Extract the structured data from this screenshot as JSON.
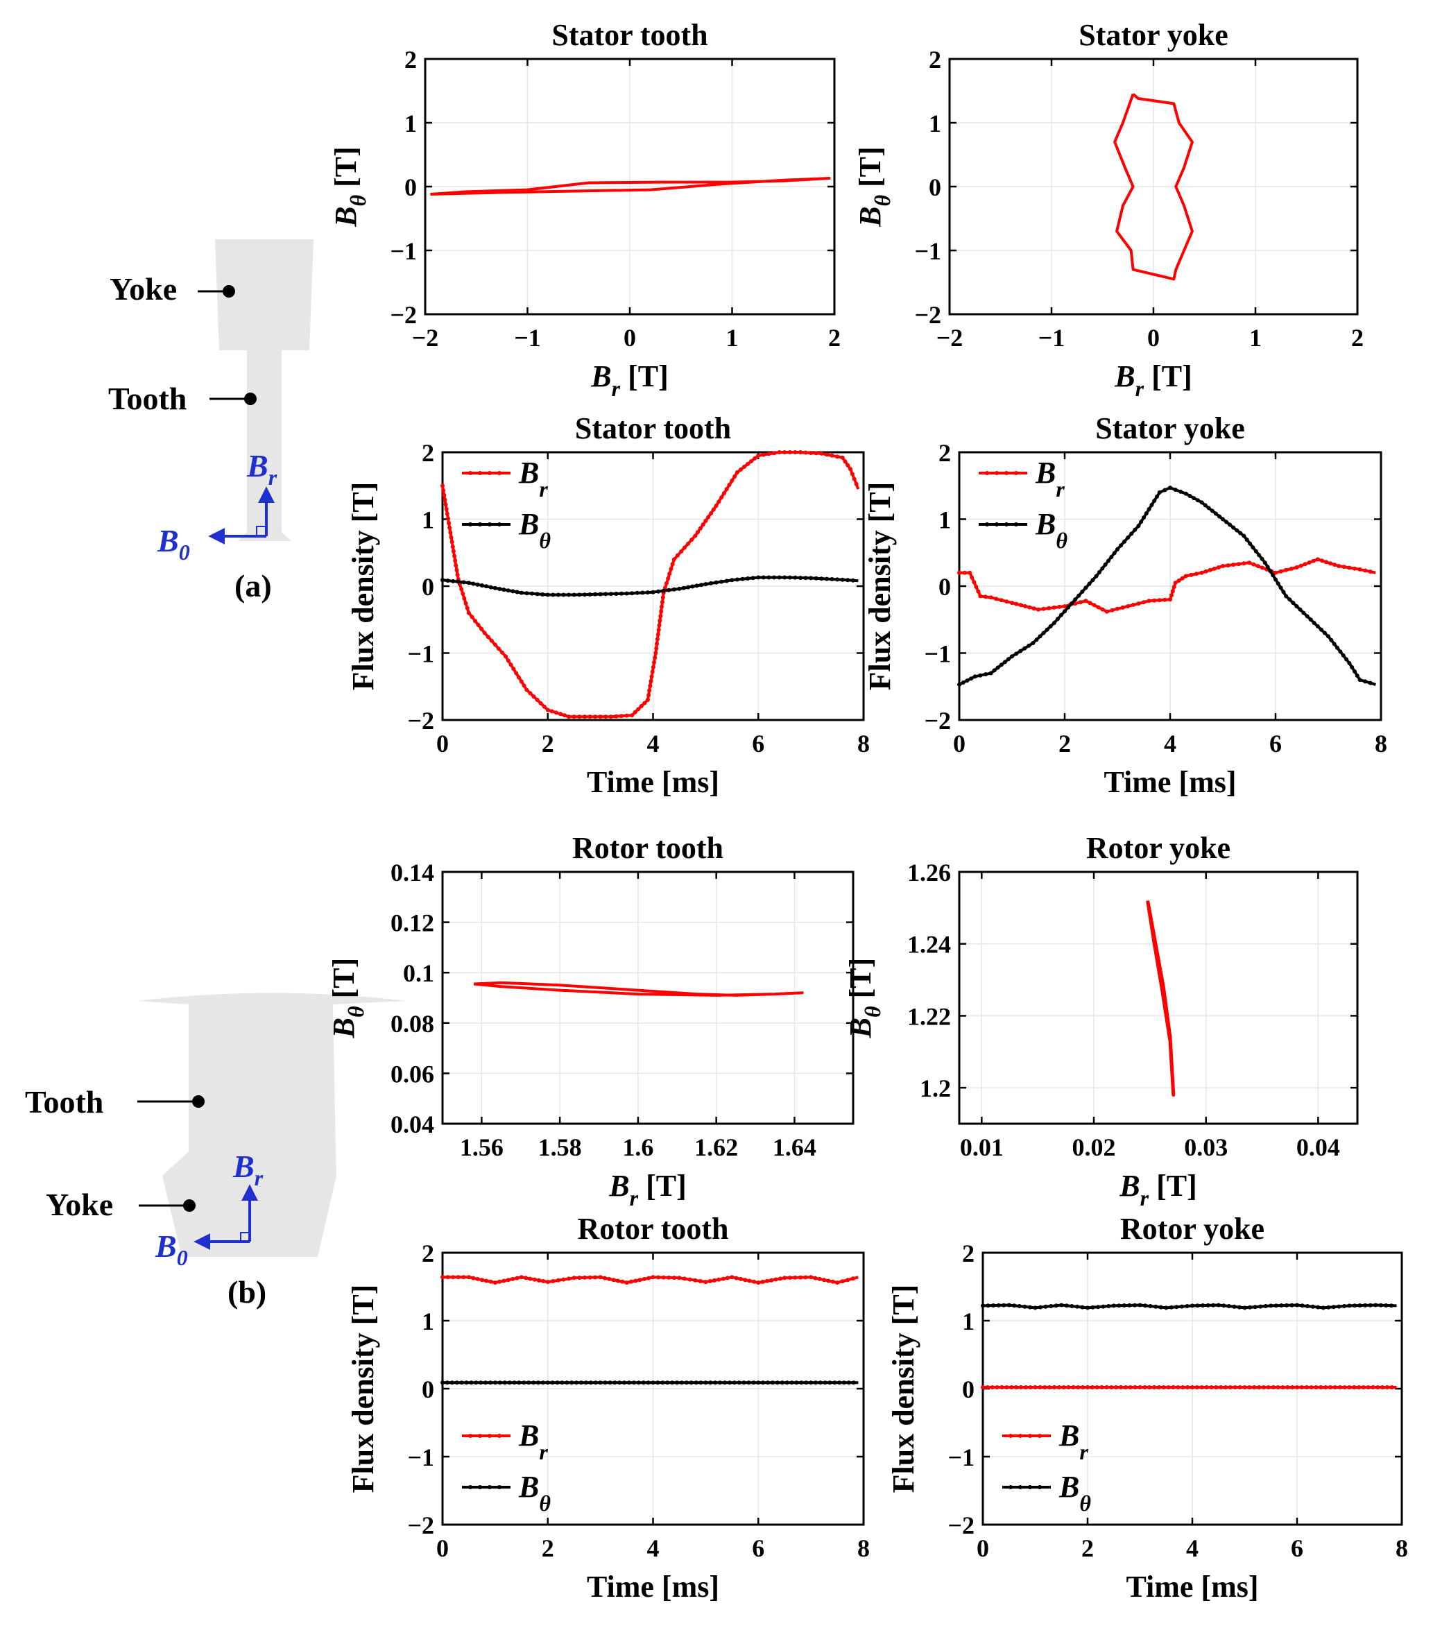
{
  "diagrams": {
    "stator": {
      "label_yoke": "Yoke",
      "label_tooth": "Tooth",
      "vector_r": "B",
      "vector_r_sub": "r",
      "vector_theta": "B",
      "vector_theta_sub": "0",
      "panel_label": "(a)"
    },
    "rotor": {
      "label_tooth": "Tooth",
      "label_yoke": "Yoke",
      "vector_r": "B",
      "vector_r_sub": "r",
      "vector_theta": "B",
      "vector_theta_sub": "0",
      "panel_label": "(b)"
    }
  },
  "colors": {
    "br": "#ff0000",
    "bt": "#000000",
    "grid": "#e6e6e6",
    "vector": "#1f2fd0",
    "shape": "#e6e6e6"
  },
  "chart_data": [
    {
      "id": "c1",
      "type": "line",
      "title": "Stator tooth",
      "xlabel": "B",
      "xlabel_sub": "r",
      "xlabel_unit": " [T]",
      "ylabel": "B",
      "ylabel_sub": "θ",
      "ylabel_unit": " [T]",
      "xlim": [
        -2,
        2
      ],
      "ylim": [
        -2,
        2
      ],
      "xticks": [
        -2,
        -1,
        0,
        1,
        2
      ],
      "yticks": [
        -2,
        -1,
        0,
        1,
        2
      ],
      "xtick_labels": [
        "−2",
        "−1",
        "0",
        "1",
        "2"
      ],
      "ytick_labels": [
        "−2",
        "−1",
        "0",
        "1",
        "2"
      ],
      "series": [
        {
          "name": "B_θ vs B_r",
          "color": "#ff0000",
          "marker": false,
          "x": [
            -1.95,
            -1.6,
            -1.0,
            -0.4,
            0.3,
            1.0,
            1.5,
            1.95,
            1.95,
            1.5,
            0.9,
            0.2,
            -0.5,
            -1.2,
            -1.95
          ],
          "y": [
            -0.12,
            -0.08,
            -0.05,
            0.06,
            0.07,
            0.07,
            0.09,
            0.13,
            0.13,
            0.1,
            0.04,
            -0.05,
            -0.07,
            -0.09,
            -0.12
          ]
        }
      ]
    },
    {
      "id": "c2",
      "type": "line",
      "title": "Stator yoke",
      "xlabel": "B",
      "xlabel_sub": "r",
      "xlabel_unit": " [T]",
      "ylabel": "B",
      "ylabel_sub": "θ",
      "ylabel_unit": " [T]",
      "xlim": [
        -2,
        2
      ],
      "ylim": [
        -2,
        2
      ],
      "xticks": [
        -2,
        -1,
        0,
        1,
        2
      ],
      "yticks": [
        -2,
        -1,
        0,
        1,
        2
      ],
      "xtick_labels": [
        "−2",
        "−1",
        "0",
        "1",
        "2"
      ],
      "ytick_labels": [
        "−2",
        "−1",
        "0",
        "1",
        "2"
      ],
      "series": [
        {
          "name": "B_θ vs B_r",
          "color": "#ff0000",
          "marker": false,
          "x": [
            -0.2,
            -0.15,
            0.2,
            0.25,
            0.38,
            0.3,
            0.22,
            0.3,
            0.38,
            0.3,
            0.22,
            0.2,
            -0.2,
            -0.22,
            -0.36,
            -0.3,
            -0.2,
            -0.28,
            -0.38,
            -0.3,
            -0.2
          ],
          "y": [
            1.45,
            1.38,
            1.3,
            1.0,
            0.7,
            0.3,
            0.0,
            -0.3,
            -0.7,
            -1.0,
            -1.3,
            -1.45,
            -1.3,
            -1.0,
            -0.7,
            -0.3,
            0.0,
            0.3,
            0.7,
            1.0,
            1.45
          ]
        }
      ]
    },
    {
      "id": "c3",
      "type": "line",
      "title": "Stator tooth",
      "xlabel": "Time [ms]",
      "ylabel": "Flux density [T]",
      "xlim": [
        0,
        8
      ],
      "ylim": [
        -2,
        2
      ],
      "xticks": [
        0,
        2,
        4,
        6,
        8
      ],
      "yticks": [
        -2,
        -1,
        0,
        1,
        2
      ],
      "xtick_labels": [
        "0",
        "2",
        "4",
        "6",
        "8"
      ],
      "ytick_labels": [
        "−2",
        "−1",
        "0",
        "1",
        "2"
      ],
      "legend": "top-left",
      "series": [
        {
          "name": "B",
          "sub": "r",
          "color": "#ff0000",
          "marker": true,
          "x": [
            0,
            0.15,
            0.3,
            0.5,
            0.8,
            1.2,
            1.6,
            2.0,
            2.4,
            2.8,
            3.2,
            3.6,
            3.9,
            4.05,
            4.2,
            4.4,
            4.8,
            5.2,
            5.6,
            6.0,
            6.4,
            6.8,
            7.2,
            7.6,
            7.75,
            7.9
          ],
          "y": [
            1.5,
            0.8,
            0.1,
            -0.4,
            -0.7,
            -1.05,
            -1.55,
            -1.85,
            -1.95,
            -1.95,
            -1.95,
            -1.93,
            -1.7,
            -1.0,
            -0.1,
            0.4,
            0.75,
            1.2,
            1.7,
            1.95,
            2.0,
            2.0,
            1.98,
            1.92,
            1.75,
            1.45
          ]
        },
        {
          "name": "B",
          "sub": "θ",
          "color": "#000000",
          "marker": true,
          "x": [
            0,
            0.5,
            1.0,
            1.5,
            2.0,
            2.5,
            3.0,
            3.5,
            4.0,
            4.5,
            5.0,
            5.5,
            6.0,
            6.5,
            7.0,
            7.5,
            7.9
          ],
          "y": [
            0.09,
            0.05,
            -0.03,
            -0.1,
            -0.13,
            -0.13,
            -0.12,
            -0.11,
            -0.09,
            -0.04,
            0.03,
            0.09,
            0.13,
            0.13,
            0.12,
            0.1,
            0.08
          ]
        }
      ]
    },
    {
      "id": "c4",
      "type": "line",
      "title": "Stator yoke",
      "xlabel": "Time [ms]",
      "ylabel": "Flux density [T]",
      "xlim": [
        0,
        8
      ],
      "ylim": [
        -2,
        2
      ],
      "xticks": [
        0,
        2,
        4,
        6,
        8
      ],
      "yticks": [
        -2,
        -1,
        0,
        1,
        2
      ],
      "xtick_labels": [
        "0",
        "2",
        "4",
        "6",
        "8"
      ],
      "ytick_labels": [
        "−2",
        "−1",
        "0",
        "1",
        "2"
      ],
      "legend": "top-left",
      "series": [
        {
          "name": "B",
          "sub": "r",
          "color": "#ff0000",
          "marker": true,
          "x": [
            0,
            0.2,
            0.4,
            0.6,
            1.0,
            1.5,
            2.0,
            2.4,
            2.8,
            3.2,
            3.6,
            4.0,
            4.1,
            4.3,
            4.6,
            5.0,
            5.5,
            6.0,
            6.4,
            6.8,
            7.2,
            7.6,
            7.9
          ],
          "y": [
            0.2,
            0.2,
            -0.15,
            -0.17,
            -0.25,
            -0.35,
            -0.3,
            -0.22,
            -0.38,
            -0.3,
            -0.22,
            -0.2,
            0.05,
            0.15,
            0.2,
            0.3,
            0.35,
            0.2,
            0.28,
            0.4,
            0.3,
            0.25,
            0.2
          ]
        },
        {
          "name": "B",
          "sub": "θ",
          "color": "#000000",
          "marker": true,
          "x": [
            0,
            0.3,
            0.6,
            1.0,
            1.4,
            1.8,
            2.2,
            2.6,
            3.0,
            3.4,
            3.8,
            4.0,
            4.3,
            4.6,
            5.0,
            5.4,
            5.8,
            6.2,
            6.6,
            7.0,
            7.4,
            7.6,
            7.9
          ],
          "y": [
            -1.47,
            -1.35,
            -1.3,
            -1.05,
            -0.85,
            -0.55,
            -0.2,
            0.15,
            0.55,
            0.9,
            1.4,
            1.47,
            1.38,
            1.25,
            1.0,
            0.75,
            0.35,
            -0.15,
            -0.45,
            -0.75,
            -1.15,
            -1.4,
            -1.47
          ]
        }
      ]
    },
    {
      "id": "c5",
      "type": "line",
      "title": "Rotor tooth",
      "xlabel": "B",
      "xlabel_sub": "r",
      "xlabel_unit": " [T]",
      "ylabel": "B",
      "ylabel_sub": "θ",
      "ylabel_unit": " [T]",
      "xlim": [
        1.55,
        1.655
      ],
      "ylim": [
        0.04,
        0.14
      ],
      "xticks": [
        1.56,
        1.58,
        1.6,
        1.62,
        1.64
      ],
      "yticks": [
        0.04,
        0.06,
        0.08,
        0.1,
        0.12,
        0.14
      ],
      "xtick_labels": [
        "1.56",
        "1.58",
        "1.6",
        "1.62",
        "1.64"
      ],
      "ytick_labels": [
        "0.04",
        "0.06",
        "0.08",
        "0.1",
        "0.12",
        "0.14"
      ],
      "series": [
        {
          "name": "B_θ vs B_r",
          "color": "#ff0000",
          "marker": false,
          "x": [
            1.558,
            1.565,
            1.58,
            1.6,
            1.615,
            1.625,
            1.635,
            1.642,
            1.635,
            1.62,
            1.6,
            1.58,
            1.565,
            1.558
          ],
          "y": [
            0.0955,
            0.096,
            0.095,
            0.093,
            0.0915,
            0.091,
            0.0915,
            0.092,
            0.0915,
            0.091,
            0.0915,
            0.093,
            0.0945,
            0.0955
          ]
        }
      ]
    },
    {
      "id": "c6",
      "type": "line",
      "title": "Rotor yoke",
      "xlabel": "B",
      "xlabel_sub": "r",
      "xlabel_unit": " [T]",
      "ylabel": "B",
      "ylabel_sub": "θ",
      "ylabel_unit": " [T]",
      "xlim": [
        0.008,
        0.0435
      ],
      "ylim": [
        1.19,
        1.26
      ],
      "xticks": [
        0.01,
        0.02,
        0.03,
        0.04
      ],
      "yticks": [
        1.2,
        1.22,
        1.24,
        1.26
      ],
      "xtick_labels": [
        "0.01",
        "0.02",
        "0.03",
        "0.04"
      ],
      "ytick_labels": [
        "1.2",
        "1.22",
        "1.24",
        "1.26"
      ],
      "series": [
        {
          "name": "B_θ vs B_r",
          "color": "#ff0000",
          "marker": false,
          "width": 5,
          "x": [
            0.0248,
            0.0255,
            0.0262,
            0.0268,
            0.0271,
            0.0268,
            0.0261,
            0.0254,
            0.0248
          ],
          "y": [
            1.252,
            1.24,
            1.228,
            1.214,
            1.198,
            1.213,
            1.227,
            1.24,
            1.252
          ]
        }
      ]
    },
    {
      "id": "c7",
      "type": "line",
      "title": "Rotor tooth",
      "xlabel": "Time [ms]",
      "ylabel": "Flux density [T]",
      "xlim": [
        0,
        8
      ],
      "ylim": [
        -2,
        2
      ],
      "xticks": [
        0,
        2,
        4,
        6,
        8
      ],
      "yticks": [
        -2,
        -1,
        0,
        1,
        2
      ],
      "xtick_labels": [
        "0",
        "2",
        "4",
        "6",
        "8"
      ],
      "ytick_labels": [
        "−2",
        "−1",
        "0",
        "1",
        "2"
      ],
      "legend": "bottom-left",
      "series": [
        {
          "name": "B",
          "sub": "r",
          "color": "#ff0000",
          "marker": true,
          "x": [
            0,
            0.5,
            1.0,
            1.5,
            2.0,
            2.5,
            3.0,
            3.5,
            4.0,
            4.5,
            5.0,
            5.5,
            6.0,
            6.5,
            7.0,
            7.5,
            7.9
          ],
          "y": [
            1.64,
            1.64,
            1.56,
            1.64,
            1.57,
            1.63,
            1.64,
            1.56,
            1.64,
            1.63,
            1.57,
            1.64,
            1.56,
            1.63,
            1.64,
            1.56,
            1.64
          ]
        },
        {
          "name": "B",
          "sub": "θ",
          "color": "#000000",
          "marker": true,
          "x": [
            0,
            1,
            2,
            3,
            4,
            5,
            6,
            7,
            7.9
          ],
          "y": [
            0.09,
            0.09,
            0.09,
            0.09,
            0.09,
            0.09,
            0.09,
            0.09,
            0.09
          ]
        }
      ]
    },
    {
      "id": "c8",
      "type": "line",
      "title": "Rotor yoke",
      "xlabel": "Time [ms]",
      "ylabel": "Flux density [T]",
      "xlim": [
        0,
        8
      ],
      "ylim": [
        -2,
        2
      ],
      "xticks": [
        0,
        2,
        4,
        6,
        8
      ],
      "yticks": [
        -2,
        -1,
        0,
        1,
        2
      ],
      "xtick_labels": [
        "0",
        "2",
        "4",
        "6",
        "8"
      ],
      "ytick_labels": [
        "−2",
        "−1",
        "0",
        "1",
        "2"
      ],
      "legend": "bottom-left",
      "series": [
        {
          "name": "B",
          "sub": "r",
          "color": "#ff0000",
          "marker": true,
          "x": [
            0,
            1,
            2,
            3,
            4,
            5,
            6,
            7,
            7.9
          ],
          "y": [
            0.02,
            0.02,
            0.02,
            0.02,
            0.02,
            0.02,
            0.02,
            0.02,
            0.02
          ]
        },
        {
          "name": "B",
          "sub": "θ",
          "color": "#000000",
          "marker": true,
          "x": [
            0,
            0.5,
            1.0,
            1.5,
            2.0,
            2.5,
            3.0,
            3.5,
            4.0,
            4.5,
            5.0,
            5.5,
            6.0,
            6.5,
            7.0,
            7.5,
            7.9
          ],
          "y": [
            1.22,
            1.23,
            1.19,
            1.23,
            1.19,
            1.22,
            1.23,
            1.19,
            1.22,
            1.23,
            1.19,
            1.22,
            1.23,
            1.19,
            1.22,
            1.23,
            1.22
          ]
        }
      ]
    }
  ]
}
